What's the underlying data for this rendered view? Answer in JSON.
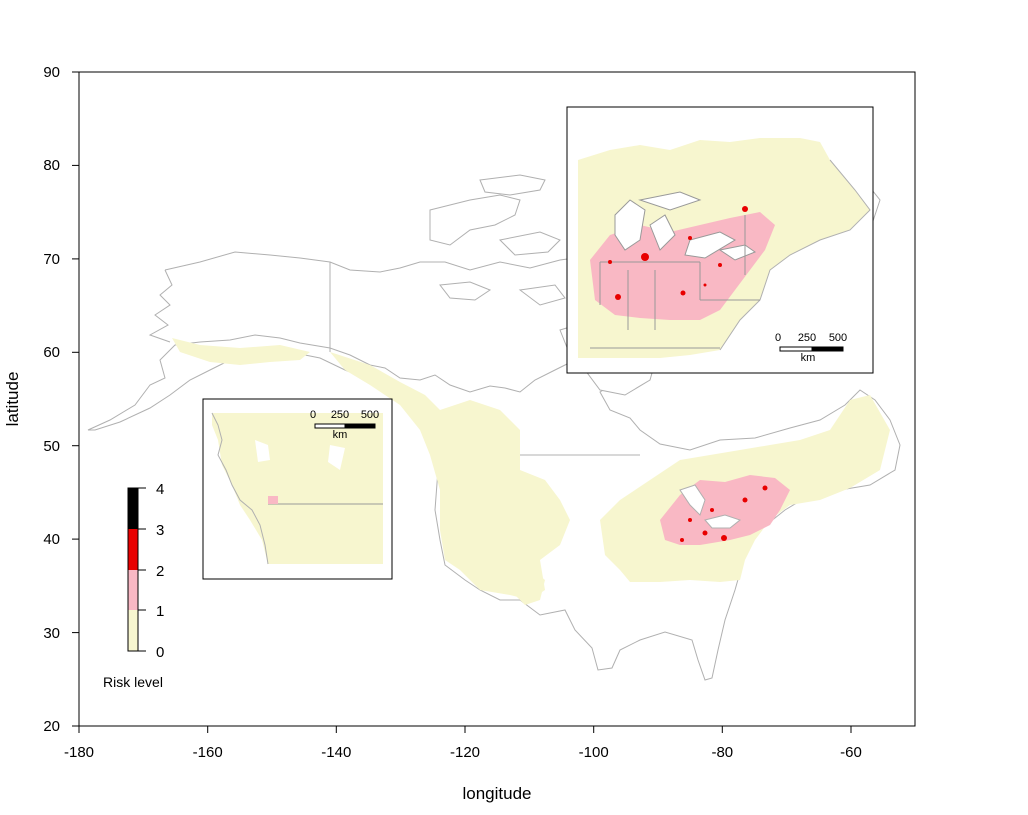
{
  "axes": {
    "xlabel": "longitude",
    "ylabel": "latitude",
    "x_ticks": [
      "-180",
      "-160",
      "-140",
      "-120",
      "-100",
      "-80",
      "-60"
    ],
    "y_ticks": [
      "20",
      "30",
      "40",
      "50",
      "60",
      "70",
      "80",
      "90"
    ]
  },
  "legend": {
    "title": "Risk level",
    "ticks": [
      "0",
      "1",
      "2",
      "3",
      "4"
    ],
    "colors": [
      "#f7f6cf",
      "#f9b8c4",
      "#e80000",
      "#000000"
    ]
  },
  "inset_west": {
    "scale_labels": [
      "0",
      "250",
      "500"
    ],
    "scale_unit": "km"
  },
  "inset_east": {
    "scale_labels": [
      "0",
      "250",
      "500"
    ],
    "scale_unit": "km"
  },
  "chart_data": {
    "type": "heatmap",
    "title": "",
    "xlabel": "longitude",
    "ylabel": "latitude",
    "xlim": [
      -180,
      -50
    ],
    "ylim": [
      20,
      90
    ],
    "legend_placement": "bottom-left",
    "risk_levels": [
      0,
      1,
      2,
      3,
      4
    ]
  }
}
